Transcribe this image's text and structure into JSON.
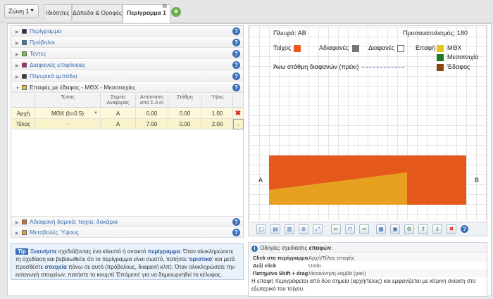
{
  "topbar": {
    "zone_label": "Ζώνη 1",
    "tabs": [
      {
        "label": "Ιδιότητες"
      },
      {
        "label": "Δάπεδα & Οροφές"
      },
      {
        "label": "Περίγραμμα 1"
      }
    ]
  },
  "accordion": {
    "items": [
      {
        "label": "Περίγραμμα",
        "color": "#2a2a6a"
      },
      {
        "label": "Πρόβολοι",
        "color": "#2c7fc4"
      },
      {
        "label": "Τέντες",
        "color": "#6fbf3a"
      },
      {
        "label": "Διαφανείς επιφάνειες",
        "color": "#c2177a"
      },
      {
        "label": "Πλευρικά εμπόδια",
        "color": "#3a3a3a"
      },
      {
        "label": "Επαφές με έδαφος - ΜΘΧ - Μεσοτοιχίες",
        "color": "#e2c51c"
      }
    ],
    "bottom_items": [
      {
        "label": "Αδιαφανή δομικά: τοιχία, δοκάρια",
        "color": "#e06a1a"
      },
      {
        "label": "Μεταβολές Ύψους",
        "color": "#f0a030"
      }
    ]
  },
  "table": {
    "headers": [
      "Τύπος",
      "Σημείο Αναφοράς",
      "Απόσταση από Σ.Α m",
      "Στάθμη",
      "Ύψος"
    ],
    "rows": [
      {
        "name": "Αρχή",
        "type": "ΜΘΧ (b=0.5)",
        "ref": "A",
        "dist": "0.00",
        "level": "0.00",
        "height": "1.00",
        "action": "✖"
      },
      {
        "name": "Τέλος",
        "type": "-",
        "ref": "A",
        "dist": "7.00",
        "level": "0.00",
        "height": "2.00",
        "action": "-"
      }
    ]
  },
  "canvas": {
    "side_label": "Πλευρά: ΑΒ",
    "orientation_label": "Προσανατολισμός: 180",
    "wall_label": "Τοίχος",
    "opaque_label": "Αδιαφανές",
    "transparent_label": "Διαφανές",
    "contact_label": "Επαφή",
    "upper_level_label": "Άνω στάθμη διαφανών (πρέκι)",
    "legend": [
      {
        "label": "ΜΘΧ",
        "color": "#e6c41a"
      },
      {
        "label": "Μεσοτοιχία",
        "color": "#1f7a1f"
      },
      {
        "label": "Έδαφος",
        "color": "#8b4513"
      }
    ],
    "point_a": "A",
    "point_b": "B",
    "wall_color": "#e55a1c",
    "contact_color": "#e8a020",
    "opaque_color": "#777777"
  },
  "toolbar": {
    "buttons": [
      "copy",
      "paste",
      "cut",
      "zoom-in",
      "fit",
      "move-left",
      "move-start",
      "move-right",
      "image",
      "export",
      "settings",
      "up",
      "down",
      "delete",
      "help"
    ]
  },
  "tip": {
    "tag": "Tip",
    "text1": "Ξεκινήστε",
    "text2": " σχεδιάζοντας ένα κλειστό ή ανοικτό ",
    "text3": "περίγραμμα",
    "text4": ". Όταν ολοκληρώσετε τη σχεδίαση και βεβαιωθείτε ότι το περίγραμμα είναι σωστό, πατήστε '",
    "text5": "οριστικό",
    "text6": "' και μετά προσθέστε ",
    "text7": "στοιχεία",
    "text8": " πάνω σε αυτό (πρόβολους, διαφανή κλπ). Όταν ολοκληρώσετε την εισαγωγή στοιχείων, πατήστε το κουμπί 'Επόμενο' για να δημιουργηθεί το κέλυφος."
  },
  "guide": {
    "title_prefix": "Οδηγίες σχεδίασης ",
    "title_bold": "επαφών",
    "title_suffix": ":",
    "rows": [
      {
        "key": "Click στο περίγραμμα",
        "value": "Αρχή/Τέλος επαφής"
      },
      {
        "key": "Δεξί click",
        "value": "Undo"
      },
      {
        "key": "Πατημένο Shift + drag",
        "value": "Μετακίνηση καμβά (pan)"
      }
    ],
    "description": "Η επαφή περιγράφεται από δύο σημεία (αρχή/τέλος) και εμφανίζεται με κίτρινη σκίαση στο εξωτερικό του τοίχου."
  }
}
